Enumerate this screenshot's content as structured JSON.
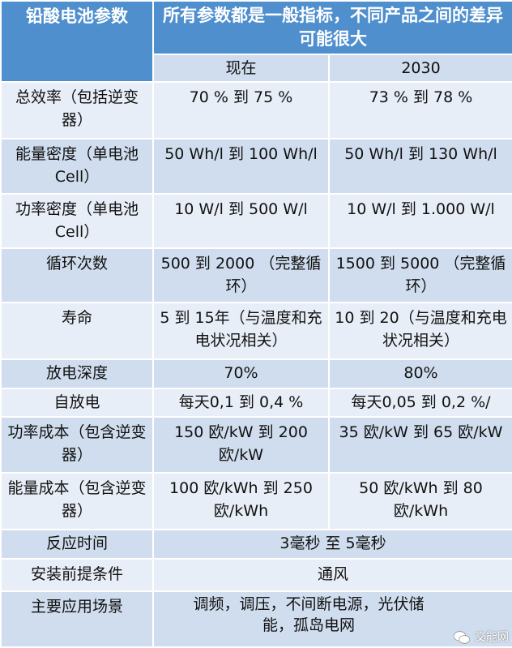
{
  "header": {
    "param_title": "铅酸电池参数",
    "note": "所有参数都是一般指标，不同产品之间的差异可能很大",
    "col_now": "现在",
    "col_2030": "2030"
  },
  "rows": [
    {
      "param": "总效率（包括逆变器）",
      "now": "70 % 到 75 %",
      "future": "73 % 到 78 %"
    },
    {
      "param": "能量密度（单电池Cell）",
      "now": "50 Wh/l 到 100 Wh/l",
      "future": "50 Wh/l 到 130 Wh/l"
    },
    {
      "param": "功率密度（单电池Cell）",
      "now": "10 W/l 到 500 W/l",
      "future": "10 W/l 到 1.000 W/l"
    },
    {
      "param": "循环次数",
      "now": "500 到 2000 （完整循环）",
      "future": "1500 到 5000 （完整循环）"
    },
    {
      "param": "寿命",
      "now": "5 到 15年（与温度和充电状况相关）",
      "future": "10 到 20（与温度和充电状况相关）"
    },
    {
      "param": "放电深度",
      "now": "70%",
      "future": "80%"
    },
    {
      "param": "自放电",
      "now": "每天0,1 到 0,4 %",
      "future": "每天0,05 到 0,2 %/"
    },
    {
      "param": "功率成本（包含逆变器）",
      "now": "150 欧/kW 到 200 欧/kW",
      "future": "35 欧/kW 到 65 欧/kW"
    },
    {
      "param": "能量成本（包含逆变器）",
      "now": "100 欧/kWh 到 250 欧/kWh",
      "future": "50 欧/kWh 到 80 欧/kWh"
    }
  ],
  "merged_rows": [
    {
      "param": "反应时间",
      "value": "3毫秒 至 5毫秒"
    },
    {
      "param": "安装前提条件",
      "value": "通风"
    },
    {
      "param": "主要应用场景",
      "value": "调频，调压，不间断电源，光伏储能，孤岛电网"
    }
  ],
  "watermark": {
    "text": "交能网",
    "icon": "wechat-icon"
  },
  "colors": {
    "header": "#4F8FCD",
    "row_dark": "#CFDDEE",
    "row_light": "#E8EEF7"
  }
}
